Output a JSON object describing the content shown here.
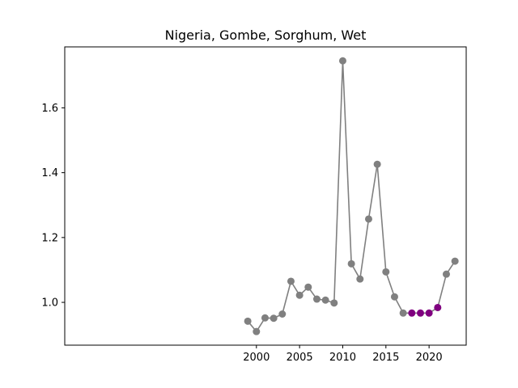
{
  "chart_data": {
    "type": "line",
    "title": "Nigeria, Gombe, Sorghum, Wet",
    "xlabel": "",
    "ylabel": "",
    "xlim": [
      1977.8,
      2024.3
    ],
    "ylim": [
      0.868,
      1.788
    ],
    "xticks": [
      2000,
      2005,
      2010,
      2015,
      2020
    ],
    "yticks": [
      1.0,
      1.2,
      1.4,
      1.6
    ],
    "ytick_labels": [
      "1.0",
      "1.2",
      "1.4",
      "1.6"
    ],
    "grid": false,
    "series": [
      {
        "line_color": "#808080",
        "points": [
          {
            "x": 1999,
            "y": 0.942,
            "color": "#808080"
          },
          {
            "x": 2000,
            "y": 0.91,
            "color": "#808080"
          },
          {
            "x": 2001,
            "y": 0.952,
            "color": "#808080"
          },
          {
            "x": 2002,
            "y": 0.951,
            "color": "#808080"
          },
          {
            "x": 2003,
            "y": 0.964,
            "color": "#808080"
          },
          {
            "x": 2004,
            "y": 1.065,
            "color": "#808080"
          },
          {
            "x": 2005,
            "y": 1.022,
            "color": "#808080"
          },
          {
            "x": 2006,
            "y": 1.047,
            "color": "#808080"
          },
          {
            "x": 2007,
            "y": 1.01,
            "color": "#808080"
          },
          {
            "x": 2008,
            "y": 1.007,
            "color": "#808080"
          },
          {
            "x": 2009,
            "y": 0.998,
            "color": "#808080"
          },
          {
            "x": 2010,
            "y": 1.745,
            "color": "#808080"
          },
          {
            "x": 2011,
            "y": 1.119,
            "color": "#808080"
          },
          {
            "x": 2012,
            "y": 1.072,
            "color": "#808080"
          },
          {
            "x": 2013,
            "y": 1.257,
            "color": "#808080"
          },
          {
            "x": 2014,
            "y": 1.426,
            "color": "#808080"
          },
          {
            "x": 2015,
            "y": 1.094,
            "color": "#808080"
          },
          {
            "x": 2016,
            "y": 1.017,
            "color": "#808080"
          },
          {
            "x": 2017,
            "y": 0.967,
            "color": "#808080"
          },
          {
            "x": 2018,
            "y": 0.967,
            "color": "#800080"
          },
          {
            "x": 2019,
            "y": 0.967,
            "color": "#800080"
          },
          {
            "x": 2020,
            "y": 0.967,
            "color": "#800080"
          },
          {
            "x": 2021,
            "y": 0.984,
            "color": "#800080"
          },
          {
            "x": 2022,
            "y": 1.087,
            "color": "#808080"
          },
          {
            "x": 2023,
            "y": 1.127,
            "color": "#808080"
          }
        ]
      }
    ]
  }
}
